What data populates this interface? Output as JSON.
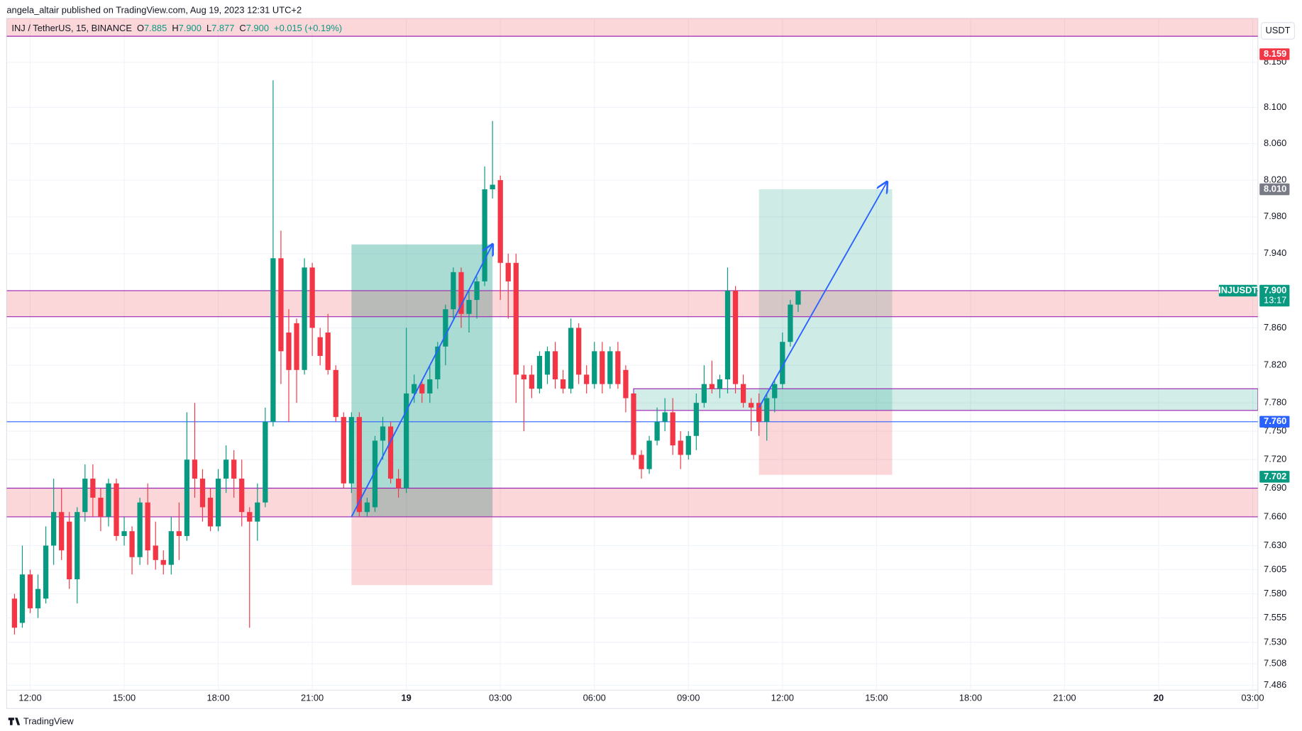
{
  "header": {
    "publisher": "angela_altair published on TradingView.com, Aug 19, 2023 12:31 UTC+2",
    "logo": "TradingView",
    "currency": "USDT"
  },
  "chart_data": {
    "type": "candlestick",
    "symbol": "INJ / TetherUS, 15, BINANCE",
    "legend": {
      "o": "O",
      "open": "7.885",
      "h": "H",
      "high": "7.900",
      "l": "L",
      "low": "7.877",
      "c": "C",
      "close": "7.900",
      "change": "+0.015 (+0.19%)"
    },
    "log_scale": true,
    "grid": true,
    "up_color": "#089981",
    "down_color": "#f23645",
    "x": [
      "2023-08-18 11:30",
      "2023-08-18 11:45",
      "2023-08-18 12:00",
      "2023-08-18 12:15",
      "2023-08-18 12:30",
      "2023-08-18 12:45",
      "2023-08-18 13:00",
      "2023-08-18 13:15",
      "2023-08-18 13:30",
      "2023-08-18 13:45",
      "2023-08-18 14:00",
      "2023-08-18 14:15",
      "2023-08-18 14:30",
      "2023-08-18 14:45",
      "2023-08-18 15:00",
      "2023-08-18 15:15",
      "2023-08-18 15:30",
      "2023-08-18 15:45",
      "2023-08-18 16:00",
      "2023-08-18 16:15",
      "2023-08-18 16:30",
      "2023-08-18 16:45",
      "2023-08-18 17:00",
      "2023-08-18 17:15",
      "2023-08-18 17:30",
      "2023-08-18 17:45",
      "2023-08-18 18:00",
      "2023-08-18 18:15",
      "2023-08-18 18:30",
      "2023-08-18 18:45",
      "2023-08-18 19:00",
      "2023-08-18 19:15",
      "2023-08-18 19:30",
      "2023-08-18 19:45",
      "2023-08-18 20:00",
      "2023-08-18 20:15",
      "2023-08-18 20:30",
      "2023-08-18 20:45",
      "2023-08-18 21:00",
      "2023-08-18 21:15",
      "2023-08-18 21:30",
      "2023-08-18 21:45",
      "2023-08-18 22:00",
      "2023-08-18 22:15",
      "2023-08-18 22:30",
      "2023-08-18 22:45",
      "2023-08-18 23:00",
      "2023-08-18 23:15",
      "2023-08-18 23:30",
      "2023-08-18 23:45",
      "2023-08-19 00:00",
      "2023-08-19 00:15",
      "2023-08-19 00:30",
      "2023-08-19 00:45",
      "2023-08-19 01:00",
      "2023-08-19 01:15",
      "2023-08-19 01:30",
      "2023-08-19 01:45",
      "2023-08-19 02:00",
      "2023-08-19 02:15",
      "2023-08-19 02:30",
      "2023-08-19 02:45",
      "2023-08-19 03:00",
      "2023-08-19 03:15",
      "2023-08-19 03:30",
      "2023-08-19 03:45",
      "2023-08-19 04:00",
      "2023-08-19 04:15",
      "2023-08-19 04:30",
      "2023-08-19 04:45",
      "2023-08-19 05:00",
      "2023-08-19 05:15",
      "2023-08-19 05:30",
      "2023-08-19 05:45",
      "2023-08-19 06:00",
      "2023-08-19 06:15",
      "2023-08-19 06:30",
      "2023-08-19 06:45",
      "2023-08-19 07:00",
      "2023-08-19 07:15",
      "2023-08-19 07:30",
      "2023-08-19 07:45",
      "2023-08-19 08:00",
      "2023-08-19 08:15",
      "2023-08-19 08:30",
      "2023-08-19 08:45",
      "2023-08-19 09:00",
      "2023-08-19 09:15",
      "2023-08-19 09:30",
      "2023-08-19 09:45",
      "2023-08-19 10:00",
      "2023-08-19 10:15",
      "2023-08-19 10:30",
      "2023-08-19 10:45",
      "2023-08-19 11:00",
      "2023-08-19 11:15",
      "2023-08-19 11:30",
      "2023-08-19 11:45",
      "2023-08-19 12:00",
      "2023-08-19 12:15",
      "2023-08-19 12:30"
    ],
    "open": [
      7.575,
      7.55,
      7.6,
      7.565,
      7.575,
      7.63,
      7.665,
      7.655,
      7.595,
      7.665,
      7.7,
      7.68,
      7.66,
      7.695,
      7.64,
      7.645,
      7.618,
      7.675,
      7.63,
      7.615,
      7.61,
      7.645,
      7.64,
      7.72,
      7.7,
      7.68,
      7.65,
      7.7,
      7.72,
      7.7,
      7.665,
      7.655,
      7.675,
      7.76,
      7.935,
      7.855,
      7.865,
      7.815,
      7.925,
      7.85,
      7.855,
      7.815,
      7.765,
      7.695,
      7.765,
      7.665,
      7.67,
      7.74,
      7.755,
      7.7,
      7.69,
      7.79,
      7.8,
      7.79,
      7.805,
      7.84,
      7.88,
      7.92,
      7.875,
      7.89,
      7.91,
      8.01,
      8.02,
      7.93,
      7.93,
      7.81,
      7.81,
      7.795,
      7.81,
      7.835,
      7.805,
      7.795,
      7.86,
      7.81,
      7.8,
      7.835,
      7.8,
      7.835,
      7.815,
      7.79,
      7.725,
      7.71,
      7.74,
      7.76,
      7.77,
      7.74,
      7.725,
      7.745,
      7.78,
      7.8,
      7.795,
      7.805,
      7.9,
      7.8,
      7.78,
      7.78,
      7.76,
      7.785,
      7.8,
      7.845,
      7.885
    ],
    "high": [
      7.58,
      7.63,
      7.605,
      7.6,
      7.65,
      7.7,
      7.69,
      7.665,
      7.67,
      7.715,
      7.715,
      7.69,
      7.7,
      7.7,
      7.66,
      7.65,
      7.68,
      7.695,
      7.655,
      7.625,
      7.66,
      7.675,
      7.77,
      7.78,
      7.71,
      7.69,
      7.71,
      7.735,
      7.73,
      7.72,
      7.67,
      7.695,
      7.775,
      8.13,
      7.965,
      7.88,
      7.87,
      7.935,
      7.93,
      7.86,
      7.875,
      7.82,
      7.77,
      7.77,
      7.77,
      7.68,
      7.745,
      7.765,
      7.76,
      7.71,
      7.86,
      7.81,
      7.805,
      7.82,
      7.845,
      7.885,
      7.925,
      7.925,
      7.9,
      7.915,
      8.035,
      8.085,
      8.025,
      7.94,
      7.94,
      7.82,
      7.82,
      7.835,
      7.84,
      7.845,
      7.815,
      7.87,
      7.865,
      7.82,
      7.845,
      7.845,
      7.84,
      7.845,
      7.82,
      7.79,
      7.73,
      7.745,
      7.775,
      7.785,
      7.785,
      7.75,
      7.75,
      7.79,
      7.82,
      7.825,
      7.81,
      7.925,
      7.905,
      7.81,
      7.785,
      7.79,
      7.79,
      7.805,
      7.855,
      7.89,
      7.9
    ],
    "low": [
      7.538,
      7.545,
      7.56,
      7.555,
      7.57,
      7.61,
      7.615,
      7.585,
      7.57,
      7.655,
      7.66,
      7.645,
      7.65,
      7.635,
      7.63,
      7.6,
      7.61,
      7.61,
      7.605,
      7.6,
      7.6,
      7.615,
      7.635,
      7.68,
      7.655,
      7.645,
      7.645,
      7.685,
      7.68,
      7.65,
      7.545,
      7.635,
      7.67,
      7.755,
      7.8,
      7.76,
      7.78,
      7.81,
      7.83,
      7.82,
      7.81,
      7.76,
      7.69,
      7.685,
      7.66,
      7.66,
      7.665,
      7.72,
      7.695,
      7.68,
      7.685,
      7.78,
      7.78,
      7.78,
      7.795,
      7.82,
      7.87,
      7.86,
      7.855,
      7.87,
      7.905,
      8.0,
      7.89,
      7.87,
      7.78,
      7.75,
      7.785,
      7.79,
      7.8,
      7.795,
      7.79,
      7.79,
      7.8,
      7.79,
      7.795,
      7.79,
      7.795,
      7.795,
      7.77,
      7.72,
      7.7,
      7.705,
      7.735,
      7.75,
      7.725,
      7.71,
      7.72,
      7.73,
      7.775,
      7.79,
      7.785,
      7.79,
      7.79,
      7.775,
      7.75,
      7.745,
      7.74,
      7.77,
      7.795,
      7.84,
      7.877
    ],
    "close": [
      7.545,
      7.6,
      7.565,
      7.585,
      7.63,
      7.665,
      7.625,
      7.595,
      7.665,
      7.7,
      7.68,
      7.66,
      7.695,
      7.64,
      7.645,
      7.618,
      7.675,
      7.625,
      7.615,
      7.61,
      7.645,
      7.64,
      7.72,
      7.7,
      7.67,
      7.65,
      7.7,
      7.72,
      7.7,
      7.665,
      7.655,
      7.675,
      7.76,
      7.935,
      7.835,
      7.815,
      7.815,
      7.925,
      7.86,
      7.83,
      7.815,
      7.765,
      7.695,
      7.765,
      7.665,
      7.675,
      7.74,
      7.755,
      7.7,
      7.69,
      7.79,
      7.8,
      7.79,
      7.805,
      7.84,
      7.88,
      7.92,
      7.875,
      7.89,
      7.91,
      8.01,
      8.015,
      7.93,
      7.91,
      7.81,
      7.805,
      7.795,
      7.83,
      7.835,
      7.805,
      7.795,
      7.86,
      7.81,
      7.8,
      7.835,
      7.8,
      7.835,
      7.8,
      7.785,
      7.725,
      7.71,
      7.74,
      7.76,
      7.77,
      7.735,
      7.725,
      7.745,
      7.78,
      7.8,
      7.795,
      7.805,
      7.9,
      7.8,
      7.78,
      7.775,
      7.76,
      7.785,
      7.8,
      7.845,
      7.885,
      7.9
    ],
    "xlim": [
      "2023-08-18 11:15",
      "2023-08-20 03:10"
    ],
    "xticks": [
      {
        "value": "2023-08-18 12:00",
        "label": "12:00"
      },
      {
        "value": "2023-08-18 15:00",
        "label": "15:00"
      },
      {
        "value": "2023-08-18 18:00",
        "label": "18:00"
      },
      {
        "value": "2023-08-18 21:00",
        "label": "21:00"
      },
      {
        "value": "2023-08-19 00:00",
        "label": "19"
      },
      {
        "value": "2023-08-19 03:00",
        "label": "03:00"
      },
      {
        "value": "2023-08-19 06:00",
        "label": "06:00"
      },
      {
        "value": "2023-08-19 09:00",
        "label": "09:00"
      },
      {
        "value": "2023-08-19 12:00",
        "label": "12:00"
      },
      {
        "value": "2023-08-19 15:00",
        "label": "15:00"
      },
      {
        "value": "2023-08-19 18:00",
        "label": "18:00"
      },
      {
        "value": "2023-08-19 21:00",
        "label": "21:00"
      },
      {
        "value": "2023-08-20 00:00",
        "label": "20"
      },
      {
        "value": "2023-08-20 03:00",
        "label": "03:00"
      }
    ],
    "ylim": [
      7.481,
      8.199
    ],
    "yticks": [
      7.486,
      7.508,
      {
        "value": 7.53,
        "label": "7.530"
      },
      7.555,
      {
        "value": 7.58,
        "label": "7.580"
      },
      7.605,
      {
        "value": 7.63,
        "label": "7.630"
      },
      {
        "value": 7.66,
        "label": "7.660"
      },
      {
        "value": 7.69,
        "label": "7.690"
      },
      {
        "value": 7.72,
        "label": "7.720"
      },
      {
        "value": 7.75,
        "label": "7.750"
      },
      {
        "value": 7.78,
        "label": "7.780"
      },
      {
        "value": 7.82,
        "label": "7.820"
      },
      {
        "value": 7.86,
        "label": "7.860"
      },
      {
        "value": 7.9,
        "label": "7.900"
      },
      {
        "value": 7.94,
        "label": "7.940"
      },
      {
        "value": 7.98,
        "label": "7.980"
      },
      {
        "value": 8.02,
        "label": "8.020"
      },
      {
        "value": 8.06,
        "label": "8.060"
      },
      {
        "value": 8.1,
        "label": "8.100"
      },
      {
        "value": 8.15,
        "label": "8.150"
      }
    ],
    "zones": [
      {
        "top": 8.22,
        "bottom": 8.179
      },
      {
        "top": 7.9,
        "bottom": 7.872
      },
      {
        "top": 7.69,
        "bottom": 7.66
      }
    ],
    "hlines": [
      {
        "price": 7.76,
        "color": "#2962ff"
      }
    ],
    "rects": [
      {
        "start": "2023-08-19 07:15",
        "end": "2023-08-20 03:10",
        "top": 7.795,
        "bottom": 7.772
      }
    ],
    "positions": [
      {
        "start": "2023-08-18 22:15",
        "end": "2023-08-19 02:45",
        "entry": 7.66,
        "target": 7.95,
        "stop": 7.589
      },
      {
        "start": "2023-08-19 11:15",
        "end": "2023-08-19 15:30",
        "entry": 7.772,
        "target": 8.01,
        "stop": 7.704
      }
    ],
    "arrows": [
      {
        "points": [
          [
            "2023-08-18 22:15",
            7.66
          ],
          [
            "2023-08-19 02:45",
            7.95
          ]
        ]
      },
      {
        "points": [
          [
            "2023-08-19 11:15",
            7.775
          ],
          [
            "2023-08-19 15:20",
            8.018
          ]
        ]
      }
    ],
    "price_labels": [
      {
        "value": 8.159,
        "color": "#f23645"
      },
      {
        "value": 8.01,
        "label": "8.010",
        "color": "#787b86"
      },
      {
        "value": 7.9,
        "label": "7.900",
        "color": "#089981",
        "name": "INJUSDT",
        "countdown": "13:17"
      },
      {
        "value": 7.76,
        "label": "7.760",
        "color": "#2962ff"
      },
      {
        "value": 7.702,
        "color": "#089981"
      }
    ]
  }
}
